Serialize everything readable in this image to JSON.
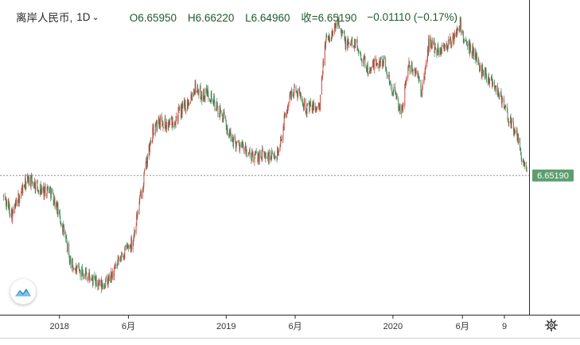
{
  "legend": {
    "symbol": "离岸人民币,",
    "interval": "1D",
    "open": "O6.65950",
    "high": "H6.66220",
    "low": "L6.64960",
    "close": "收=6.65190",
    "change": "−0.01110 (−0.17%)"
  },
  "colors": {
    "up": "#c6463f",
    "down": "#3f8a56",
    "label_bg": "#5e9d6f",
    "accent": "#2b8ccc"
  },
  "icons": {
    "logo": "wave-logo-icon",
    "settings": "gear-icon",
    "interval": "chevron-down-icon"
  },
  "chart_data": {
    "type": "candlestick",
    "series": [
      {
        "name": "离岸人民币",
        "points": [
          [
            "2017-09-01",
            6.58
          ],
          [
            "2017-09-20",
            6.52
          ],
          [
            "2017-10-10",
            6.6
          ],
          [
            "2017-10-25",
            6.64
          ],
          [
            "2017-11-10",
            6.62
          ],
          [
            "2017-11-25",
            6.6
          ],
          [
            "2017-12-10",
            6.61
          ],
          [
            "2017-12-25",
            6.55
          ],
          [
            "2018-01-10",
            6.47
          ],
          [
            "2018-01-25",
            6.36
          ],
          [
            "2018-02-08",
            6.33
          ],
          [
            "2018-02-25",
            6.33
          ],
          [
            "2018-03-15",
            6.3
          ],
          [
            "2018-04-02",
            6.28
          ],
          [
            "2018-04-20",
            6.3
          ],
          [
            "2018-05-08",
            6.35
          ],
          [
            "2018-05-25",
            6.4
          ],
          [
            "2018-06-10",
            6.43
          ],
          [
            "2018-06-25",
            6.56
          ],
          [
            "2018-07-10",
            6.69
          ],
          [
            "2018-07-25",
            6.8
          ],
          [
            "2018-08-10",
            6.84
          ],
          [
            "2018-08-25",
            6.82
          ],
          [
            "2018-09-10",
            6.84
          ],
          [
            "2018-09-25",
            6.87
          ],
          [
            "2018-10-10",
            6.9
          ],
          [
            "2018-10-25",
            6.95
          ],
          [
            "2018-11-10",
            6.92
          ],
          [
            "2018-11-25",
            6.93
          ],
          [
            "2018-12-10",
            6.88
          ],
          [
            "2018-12-25",
            6.85
          ],
          [
            "2019-01-10",
            6.78
          ],
          [
            "2019-01-25",
            6.76
          ],
          [
            "2019-02-10",
            6.74
          ],
          [
            "2019-02-25",
            6.71
          ],
          [
            "2019-03-10",
            6.72
          ],
          [
            "2019-03-25",
            6.72
          ],
          [
            "2019-04-10",
            6.71
          ],
          [
            "2019-04-25",
            6.73
          ],
          [
            "2019-05-10",
            6.85
          ],
          [
            "2019-05-25",
            6.94
          ],
          [
            "2019-06-10",
            6.93
          ],
          [
            "2019-06-25",
            6.88
          ],
          [
            "2019-07-10",
            6.88
          ],
          [
            "2019-07-25",
            6.88
          ],
          [
            "2019-08-05",
            7.1
          ],
          [
            "2019-08-20",
            7.12
          ],
          [
            "2019-09-03",
            7.18
          ],
          [
            "2019-09-20",
            7.09
          ],
          [
            "2019-10-10",
            7.1
          ],
          [
            "2019-10-25",
            7.05
          ],
          [
            "2019-11-10",
            7.0
          ],
          [
            "2019-11-25",
            7.03
          ],
          [
            "2019-12-10",
            7.04
          ],
          [
            "2019-12-25",
            6.97
          ],
          [
            "2020-01-10",
            6.9
          ],
          [
            "2020-01-20",
            6.86
          ],
          [
            "2020-02-03",
            7.02
          ],
          [
            "2020-02-20",
            7.0
          ],
          [
            "2020-03-05",
            6.93
          ],
          [
            "2020-03-20",
            7.1
          ],
          [
            "2020-04-10",
            7.07
          ],
          [
            "2020-04-25",
            7.09
          ],
          [
            "2020-05-10",
            7.1
          ],
          [
            "2020-05-27",
            7.16
          ],
          [
            "2020-06-10",
            7.08
          ],
          [
            "2020-06-25",
            7.07
          ],
          [
            "2020-07-10",
            7.01
          ],
          [
            "2020-07-25",
            6.99
          ],
          [
            "2020-08-10",
            6.96
          ],
          [
            "2020-08-25",
            6.91
          ],
          [
            "2020-09-10",
            6.84
          ],
          [
            "2020-09-25",
            6.8
          ],
          [
            "2020-10-10",
            6.71
          ],
          [
            "2020-10-20",
            6.65
          ]
        ]
      }
    ],
    "x_ticks": [
      "2018",
      "6月",
      "2019",
      "6月",
      "2020",
      "6月",
      "9"
    ],
    "x_tick_dates": [
      "2018-01-01",
      "2018-06-01",
      "2019-01-01",
      "2019-06-01",
      "2020-01-01",
      "2020-06-01",
      "2020-09-01"
    ],
    "xlim": [
      "2017-08-24",
      "2020-10-25"
    ],
    "ylim": [
      6.185,
      7.24
    ],
    "last_value": "6.65190",
    "last_price": 6.6519,
    "grid": false,
    "y_scale": "linear"
  }
}
